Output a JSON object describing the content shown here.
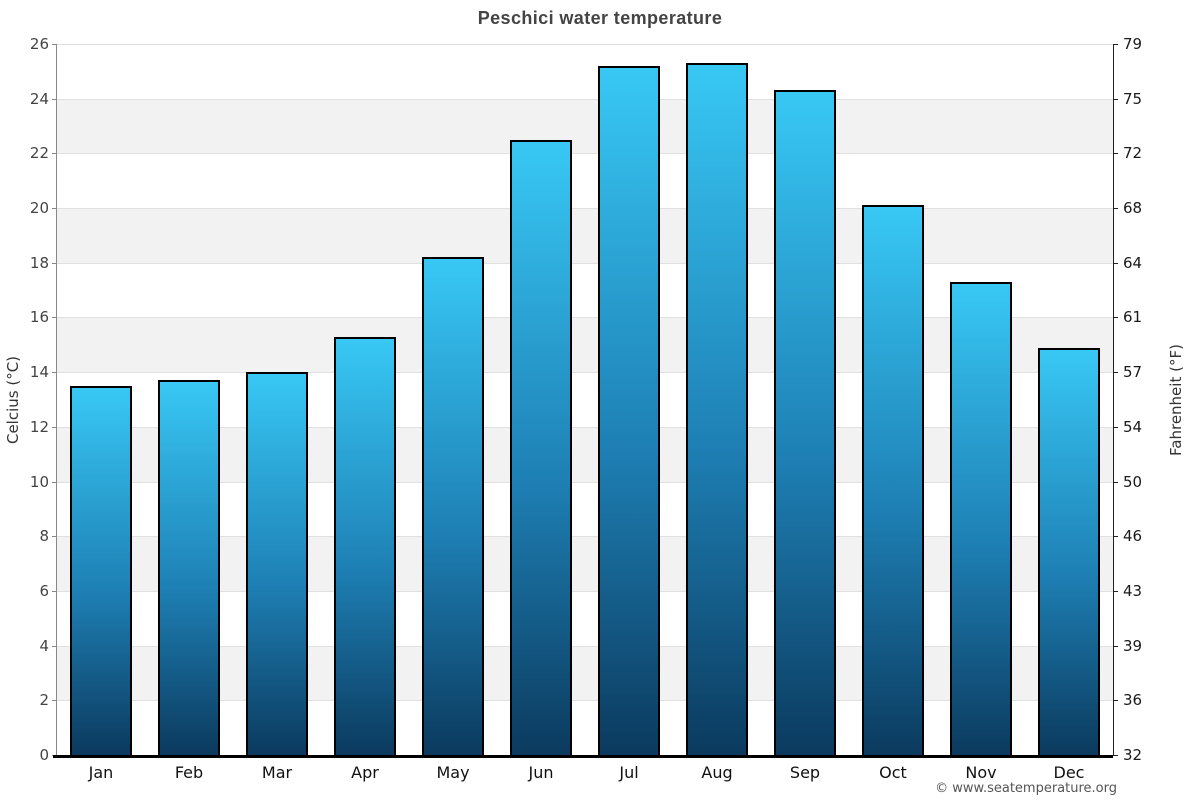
{
  "title": "Peschici water temperature",
  "footer": "© www.seatemperature.org",
  "axes": {
    "left_title": "Celcius (°C)",
    "right_title": "Fahrenheit (°F)"
  },
  "chart_data": {
    "type": "bar",
    "title": "Peschici water temperature",
    "categories": [
      "Jan",
      "Feb",
      "Mar",
      "Apr",
      "May",
      "Jun",
      "Jul",
      "Aug",
      "Sep",
      "Oct",
      "Nov",
      "Dec"
    ],
    "values": [
      13.5,
      13.7,
      14.0,
      15.3,
      18.2,
      22.5,
      25.2,
      25.3,
      24.3,
      20.1,
      17.3,
      14.9
    ],
    "xlabel": "",
    "ylabel_left": "Celcius (°C)",
    "ylabel_right": "Fahrenheit (°F)",
    "ylim_celsius": [
      0,
      26
    ],
    "yticks_celsius": [
      0,
      2,
      4,
      6,
      8,
      10,
      12,
      14,
      16,
      18,
      20,
      22,
      24,
      26
    ],
    "yticks_fahrenheit_labels": [
      "32",
      "36",
      "39",
      "43",
      "46",
      "50",
      "54",
      "57",
      "61",
      "64",
      "68",
      "72",
      "75",
      "79"
    ],
    "legend": "none",
    "grid": "horizontal gridlines every 2°C with alternating white/gray bands",
    "gray_band_start_values": [
      2,
      6,
      10,
      14,
      18,
      22
    ],
    "colors": {
      "bar_gradient_top": "#38c8f4",
      "bar_gradient_mid": "#1e80b5",
      "bar_gradient_bottom": "#0b3a5e",
      "bar_border": "#000000",
      "band_gray": "#f2f2f2",
      "gridline": "#e0e0e0",
      "x_axis_line": "#000000",
      "left_axis_line": "#888888",
      "right_axis_line": "#222222"
    }
  }
}
